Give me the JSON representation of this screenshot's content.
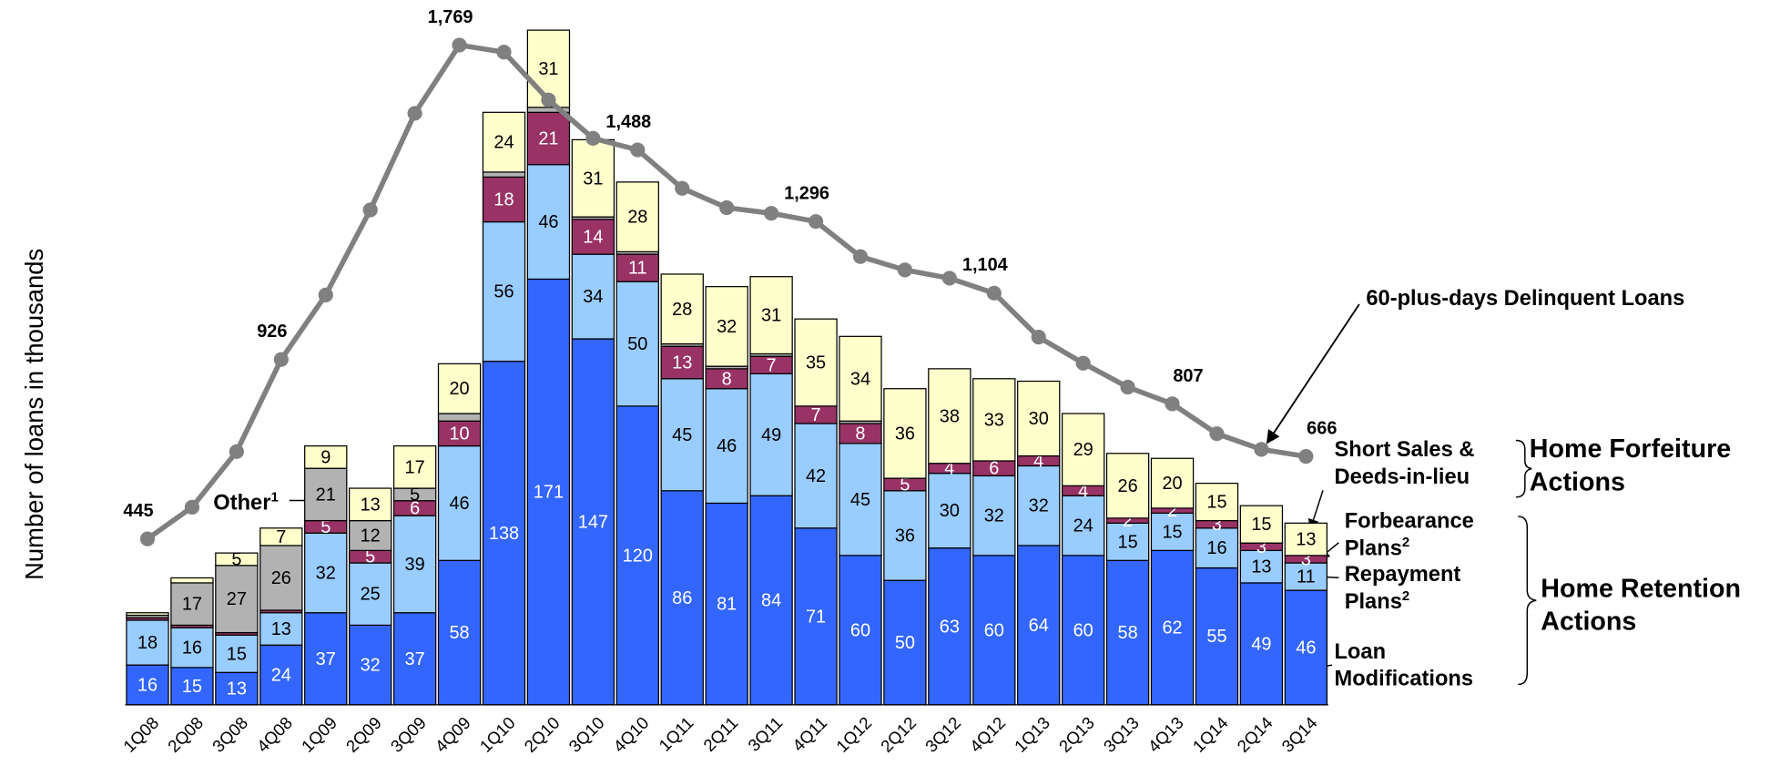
{
  "chart_data": {
    "type": "bar",
    "y_label": "Number of loans in thousands",
    "categories": [
      "1Q08",
      "2Q08",
      "3Q08",
      "4Q08",
      "1Q09",
      "2Q09",
      "3Q09",
      "4Q09",
      "1Q10",
      "2Q10",
      "3Q10",
      "4Q10",
      "1Q11",
      "2Q11",
      "3Q11",
      "4Q11",
      "1Q12",
      "2Q12",
      "3Q12",
      "4Q12",
      "1Q13",
      "2Q13",
      "3Q13",
      "4Q13",
      "1Q14",
      "2Q14",
      "3Q14"
    ],
    "ylim": [
      0,
      274
    ],
    "y2lim": [
      0,
      1829
    ],
    "series": [
      {
        "name": "Loan Modifications",
        "color": "#3366ff",
        "values": [
          16,
          15,
          13,
          24,
          37,
          32,
          37,
          58,
          138,
          171,
          147,
          120,
          86,
          81,
          84,
          71,
          60,
          50,
          63,
          60,
          64,
          60,
          58,
          62,
          55,
          49,
          46
        ],
        "value_labels": [
          "16",
          "15",
          "13",
          "24",
          "37",
          "32",
          "37",
          "58",
          "138",
          "171",
          "147",
          "120",
          "86",
          "81",
          "84",
          "71",
          "60",
          "50",
          "63",
          "60",
          "64",
          "60",
          "58",
          "62",
          "55",
          "49",
          "46"
        ]
      },
      {
        "name": "Repayment Plans",
        "sup": "2",
        "color": "#99ccff",
        "values": [
          18,
          16,
          15,
          13,
          32,
          25,
          39,
          46,
          56,
          46,
          34,
          50,
          45,
          46,
          49,
          42,
          45,
          36,
          30,
          32,
          32,
          24,
          15,
          15,
          16,
          13,
          11
        ],
        "value_labels": [
          "18",
          "16",
          "15",
          "13",
          "32",
          "25",
          "39",
          "46",
          "56",
          "46",
          "34",
          "50",
          "45",
          "46",
          "49",
          "42",
          "45",
          "36",
          "30",
          "32",
          "32",
          "24",
          "15",
          "15",
          "16",
          "13",
          "11"
        ]
      },
      {
        "name": "Forbearance Plans",
        "sup": "2",
        "color": "#993366",
        "values": [
          1,
          1,
          1,
          1,
          5,
          5,
          6,
          10,
          18,
          21,
          14,
          11,
          13,
          8,
          7,
          7,
          8,
          5,
          4,
          6,
          4,
          4,
          2,
          2,
          3,
          3,
          3
        ],
        "value_labels": [
          null,
          null,
          null,
          null,
          "5",
          "5",
          "6",
          "10",
          "18",
          "21",
          "14",
          "11",
          "13",
          "8",
          "7",
          "7",
          "8",
          "5",
          "4",
          "6",
          "4",
          "4",
          "2",
          "2",
          "3",
          "3",
          "3"
        ]
      },
      {
        "name": "Other",
        "sup": "1",
        "color": "#b2b2b2",
        "values": [
          1,
          17,
          27,
          26,
          21,
          12,
          5,
          3,
          2,
          2,
          1,
          1,
          1,
          1,
          1,
          0,
          1,
          0,
          0,
          0,
          0,
          0,
          0,
          0,
          0,
          0,
          0
        ],
        "value_labels": [
          null,
          "17",
          "27",
          "26",
          "21",
          "12",
          "5",
          null,
          null,
          null,
          null,
          null,
          null,
          null,
          null,
          null,
          null,
          null,
          null,
          null,
          null,
          null,
          null,
          null,
          null,
          null,
          null
        ]
      },
      {
        "name": "Short Sales & Deeds-in-lieu",
        "color": "#ffffcc",
        "values": [
          1,
          2,
          5,
          7,
          9,
          13,
          17,
          20,
          24,
          31,
          31,
          28,
          28,
          32,
          31,
          35,
          34,
          36,
          38,
          33,
          30,
          29,
          26,
          20,
          15,
          15,
          13
        ],
        "value_labels": [
          null,
          null,
          "5",
          "7",
          "9",
          "13",
          "17",
          "20",
          "24",
          "31",
          "31",
          "28",
          "28",
          "32",
          "31",
          "35",
          "34",
          "36",
          "38",
          "33",
          "30",
          "29",
          "26",
          "20",
          "15",
          "15",
          "13"
        ]
      },
      {
        "name": "60-plus-days Delinquent Loans",
        "type": "line",
        "axis": "y2",
        "color": "#808080",
        "values": [
          445,
          530,
          679,
          926,
          1099,
          1327,
          1586,
          1769,
          1750,
          1622,
          1519,
          1488,
          1385,
          1333,
          1318,
          1296,
          1202,
          1166,
          1144,
          1104,
          986,
          916,
          852,
          807,
          727,
          685,
          666
        ],
        "value_labels": [
          "445",
          null,
          null,
          "926",
          null,
          null,
          null,
          "1,769",
          null,
          null,
          null,
          "1,488",
          null,
          null,
          null,
          "1,296",
          null,
          null,
          null,
          "1,104",
          null,
          null,
          null,
          "807",
          null,
          null,
          "666"
        ]
      }
    ],
    "annotations": [
      "Home Forfeiture Actions",
      "Home Retention Actions"
    ]
  }
}
